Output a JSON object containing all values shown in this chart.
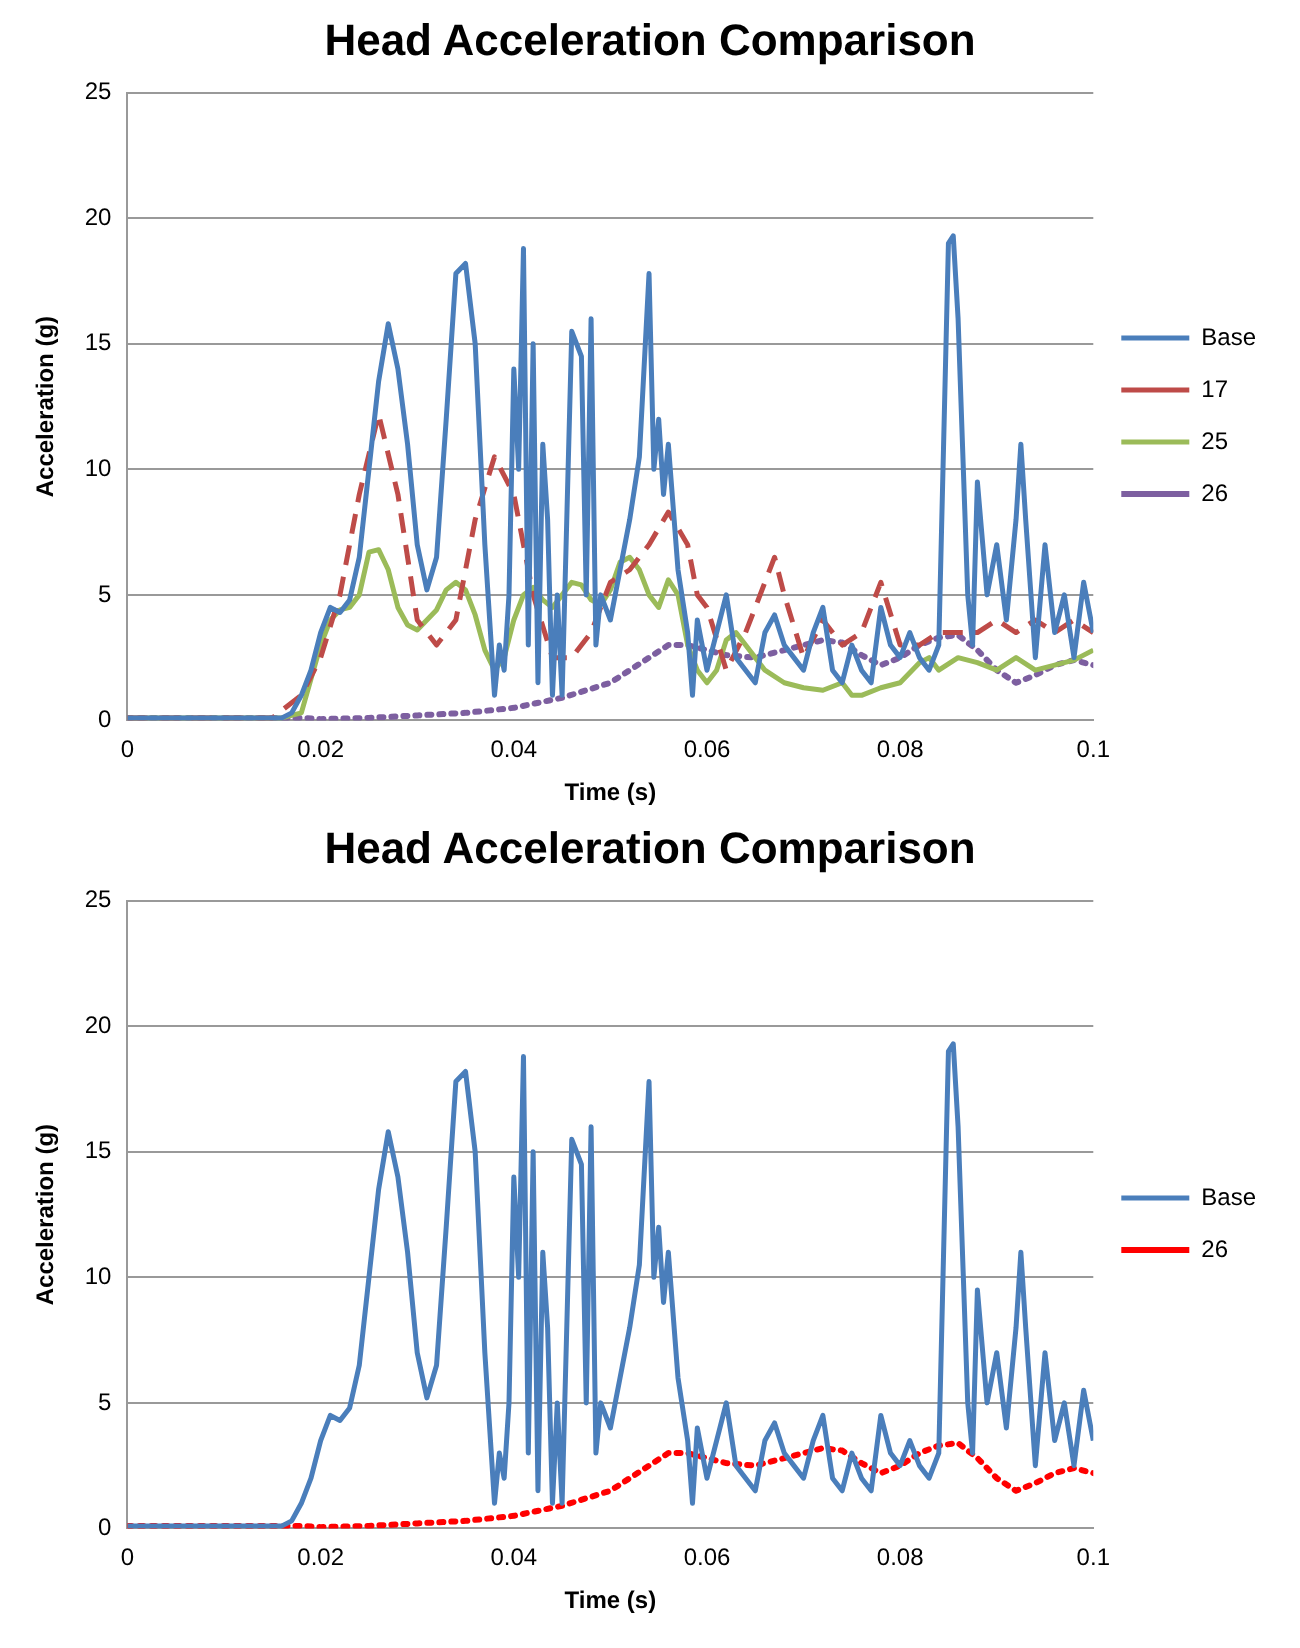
{
  "chart_data": [
    {
      "type": "line",
      "title": "Head Acceleration Comparison",
      "xlabel": "Time (s)",
      "ylabel": "Acceleration (g)",
      "xlim": [
        0,
        0.1
      ],
      "xticks": [
        0,
        0.02,
        0.04,
        0.06,
        0.08,
        0.1
      ],
      "ylim": [
        0,
        25
      ],
      "yticks": [
        0,
        5,
        10,
        15,
        20,
        25
      ],
      "grid": "y",
      "legend": "right",
      "marker": "none",
      "series": [
        {
          "name": "Base",
          "color": "#4a7ebb",
          "line_style": "solid",
          "x": [
            0,
            0.005,
            0.01,
            0.016,
            0.017,
            0.018,
            0.019,
            0.02,
            0.021,
            0.022,
            0.023,
            0.024,
            0.025,
            0.026,
            0.027,
            0.028,
            0.029,
            0.03,
            0.031,
            0.032,
            0.033,
            0.034,
            0.035,
            0.036,
            0.037,
            0.038,
            0.0385,
            0.039,
            0.0395,
            0.04,
            0.0405,
            0.041,
            0.0415,
            0.042,
            0.0425,
            0.043,
            0.0435,
            0.044,
            0.0445,
            0.045,
            0.046,
            0.047,
            0.0475,
            0.048,
            0.0485,
            0.049,
            0.05,
            0.051,
            0.052,
            0.053,
            0.054,
            0.0545,
            0.055,
            0.0555,
            0.056,
            0.057,
            0.058,
            0.0585,
            0.059,
            0.06,
            0.061,
            0.062,
            0.063,
            0.064,
            0.065,
            0.066,
            0.067,
            0.068,
            0.069,
            0.07,
            0.071,
            0.072,
            0.073,
            0.074,
            0.075,
            0.076,
            0.077,
            0.078,
            0.079,
            0.08,
            0.081,
            0.082,
            0.083,
            0.084,
            0.085,
            0.0855,
            0.086,
            0.087,
            0.0875,
            0.088,
            0.089,
            0.09,
            0.091,
            0.092,
            0.0925,
            0.093,
            0.094,
            0.095,
            0.096,
            0.097,
            0.098,
            0.099,
            0.1
          ],
          "values": [
            0.1,
            0.1,
            0.1,
            0.1,
            0.3,
            1,
            2,
            3.5,
            4.5,
            4.3,
            4.8,
            6.5,
            10,
            13.5,
            15.8,
            14,
            11,
            7,
            5.2,
            6.5,
            12,
            17.8,
            18.2,
            15,
            7,
            1,
            3,
            2,
            5,
            14,
            10,
            18.8,
            3,
            15,
            1.5,
            11,
            8,
            1,
            5,
            1,
            15.5,
            14.5,
            5,
            16,
            3,
            5,
            4,
            6,
            8,
            10.5,
            17.8,
            10,
            12,
            9,
            11,
            6,
            3.5,
            1,
            4,
            2,
            3.5,
            5,
            2.5,
            2,
            1.5,
            3.5,
            4.2,
            3,
            2.5,
            2,
            3.5,
            4.5,
            2,
            1.5,
            3,
            2,
            1.5,
            4.5,
            3,
            2.5,
            3.5,
            2.5,
            2,
            3,
            19,
            19.3,
            16,
            5,
            3,
            9.5,
            5,
            7,
            4,
            8,
            11,
            8,
            2.5,
            7,
            3.5,
            5,
            2.5,
            5.5,
            3.5
          ]
        },
        {
          "name": "17",
          "color": "#be4b48",
          "line_style": "dashed",
          "x": [
            0,
            0.015,
            0.016,
            0.018,
            0.02,
            0.022,
            0.024,
            0.026,
            0.028,
            0.03,
            0.032,
            0.034,
            0.036,
            0.038,
            0.04,
            0.042,
            0.044,
            0.046,
            0.048,
            0.05,
            0.052,
            0.054,
            0.056,
            0.058,
            0.059,
            0.06,
            0.062,
            0.064,
            0.066,
            0.067,
            0.068,
            0.07,
            0.072,
            0.074,
            0.076,
            0.078,
            0.08,
            0.082,
            0.084,
            0.086,
            0.088,
            0.09,
            0.092,
            0.094,
            0.096,
            0.098,
            0.1
          ],
          "values": [
            0.1,
            0.1,
            0.4,
            1,
            2.5,
            5,
            9,
            12.2,
            9,
            4,
            3,
            4,
            8,
            10.5,
            9,
            5,
            2.5,
            2.5,
            3.5,
            5.5,
            6,
            7,
            8.3,
            7,
            5,
            4.5,
            2,
            3.5,
            5.5,
            6.5,
            5,
            2.5,
            4,
            3,
            3.5,
            5.5,
            3,
            3,
            3.5,
            3.5,
            3.5,
            4,
            3.5,
            4,
            3.5,
            4,
            3.5
          ]
        },
        {
          "name": "25",
          "color": "#9bbb59",
          "line_style": "solid",
          "x": [
            0,
            0.016,
            0.018,
            0.02,
            0.021,
            0.022,
            0.023,
            0.024,
            0.025,
            0.026,
            0.027,
            0.028,
            0.029,
            0.03,
            0.032,
            0.033,
            0.034,
            0.035,
            0.036,
            0.037,
            0.038,
            0.039,
            0.04,
            0.041,
            0.042,
            0.043,
            0.044,
            0.045,
            0.046,
            0.047,
            0.048,
            0.049,
            0.05,
            0.051,
            0.052,
            0.053,
            0.054,
            0.055,
            0.056,
            0.057,
            0.058,
            0.059,
            0.06,
            0.061,
            0.062,
            0.063,
            0.064,
            0.065,
            0.066,
            0.068,
            0.07,
            0.072,
            0.074,
            0.075,
            0.076,
            0.078,
            0.08,
            0.082,
            0.083,
            0.084,
            0.086,
            0.088,
            0.09,
            0.092,
            0.094,
            0.096,
            0.098,
            0.1
          ],
          "values": [
            0.1,
            0.1,
            0.3,
            3,
            4,
            4.4,
            4.5,
            5,
            6.7,
            6.8,
            6,
            4.5,
            3.8,
            3.6,
            4.4,
            5.2,
            5.5,
            5.2,
            4.2,
            2.8,
            2,
            2.5,
            4,
            5,
            5.3,
            4.8,
            4.5,
            5,
            5.5,
            5.4,
            4.8,
            4.6,
            5.2,
            6.3,
            6.5,
            6,
            5,
            4.5,
            5.6,
            5,
            3,
            2,
            1.5,
            2,
            3.2,
            3.5,
            3,
            2.5,
            2,
            1.5,
            1.3,
            1.2,
            1.5,
            1,
            1,
            1.3,
            1.5,
            2.3,
            2.5,
            2,
            2.5,
            2.3,
            2,
            2.5,
            2,
            2.2,
            2.4,
            2.8
          ]
        },
        {
          "name": "26",
          "color": "#7d5fa0",
          "line_style": "dotted",
          "x": [
            0,
            0.018,
            0.02,
            0.025,
            0.03,
            0.035,
            0.04,
            0.045,
            0.05,
            0.054,
            0.056,
            0.058,
            0.06,
            0.062,
            0.065,
            0.068,
            0.07,
            0.072,
            0.074,
            0.076,
            0.078,
            0.08,
            0.082,
            0.084,
            0.086,
            0.088,
            0.09,
            0.092,
            0.094,
            0.096,
            0.098,
            0.1
          ],
          "values": [
            0.1,
            0.1,
            0.05,
            0.1,
            0.2,
            0.3,
            0.5,
            0.9,
            1.5,
            2.5,
            3,
            3,
            2.8,
            2.6,
            2.5,
            2.8,
            3,
            3.2,
            3.1,
            2.6,
            2.2,
            2.5,
            3,
            3.3,
            3.4,
            2.8,
            2,
            1.5,
            1.8,
            2.2,
            2.4,
            2.2
          ]
        }
      ]
    },
    {
      "type": "line",
      "title": "Head Acceleration Comparison",
      "xlabel": "Time (s)",
      "ylabel": "Acceleration (g)",
      "xlim": [
        0,
        0.1
      ],
      "xticks": [
        0,
        0.02,
        0.04,
        0.06,
        0.08,
        0.1
      ],
      "ylim": [
        0,
        25
      ],
      "yticks": [
        0,
        5,
        10,
        15,
        20,
        25
      ],
      "grid": "y",
      "legend": "right",
      "marker": "none",
      "series": [
        {
          "name": "Base",
          "color": "#4a7ebb",
          "line_style": "solid",
          "x": [
            0,
            0.005,
            0.01,
            0.016,
            0.017,
            0.018,
            0.019,
            0.02,
            0.021,
            0.022,
            0.023,
            0.024,
            0.025,
            0.026,
            0.027,
            0.028,
            0.029,
            0.03,
            0.031,
            0.032,
            0.033,
            0.034,
            0.035,
            0.036,
            0.037,
            0.038,
            0.0385,
            0.039,
            0.0395,
            0.04,
            0.0405,
            0.041,
            0.0415,
            0.042,
            0.0425,
            0.043,
            0.0435,
            0.044,
            0.0445,
            0.045,
            0.046,
            0.047,
            0.0475,
            0.048,
            0.0485,
            0.049,
            0.05,
            0.051,
            0.052,
            0.053,
            0.054,
            0.0545,
            0.055,
            0.0555,
            0.056,
            0.057,
            0.058,
            0.0585,
            0.059,
            0.06,
            0.061,
            0.062,
            0.063,
            0.064,
            0.065,
            0.066,
            0.067,
            0.068,
            0.069,
            0.07,
            0.071,
            0.072,
            0.073,
            0.074,
            0.075,
            0.076,
            0.077,
            0.078,
            0.079,
            0.08,
            0.081,
            0.082,
            0.083,
            0.084,
            0.085,
            0.0855,
            0.086,
            0.087,
            0.0875,
            0.088,
            0.089,
            0.09,
            0.091,
            0.092,
            0.0925,
            0.093,
            0.094,
            0.095,
            0.096,
            0.097,
            0.098,
            0.099,
            0.1
          ],
          "values": [
            0.1,
            0.1,
            0.1,
            0.1,
            0.3,
            1,
            2,
            3.5,
            4.5,
            4.3,
            4.8,
            6.5,
            10,
            13.5,
            15.8,
            14,
            11,
            7,
            5.2,
            6.5,
            12,
            17.8,
            18.2,
            15,
            7,
            1,
            3,
            2,
            5,
            14,
            10,
            18.8,
            3,
            15,
            1.5,
            11,
            8,
            1,
            5,
            1,
            15.5,
            14.5,
            5,
            16,
            3,
            5,
            4,
            6,
            8,
            10.5,
            17.8,
            10,
            12,
            9,
            11,
            6,
            3.5,
            1,
            4,
            2,
            3.5,
            5,
            2.5,
            2,
            1.5,
            3.5,
            4.2,
            3,
            2.5,
            2,
            3.5,
            4.5,
            2,
            1.5,
            3,
            2,
            1.5,
            4.5,
            3,
            2.5,
            3.5,
            2.5,
            2,
            3,
            19,
            19.3,
            16,
            5,
            3,
            9.5,
            5,
            7,
            4,
            8,
            11,
            8,
            2.5,
            7,
            3.5,
            5,
            2.5,
            5.5,
            3.5
          ]
        },
        {
          "name": "26",
          "color": "#ff0000",
          "line_style": "dotted",
          "x": [
            0,
            0.018,
            0.02,
            0.025,
            0.03,
            0.035,
            0.04,
            0.045,
            0.05,
            0.054,
            0.056,
            0.058,
            0.06,
            0.062,
            0.065,
            0.068,
            0.07,
            0.072,
            0.074,
            0.076,
            0.078,
            0.08,
            0.082,
            0.084,
            0.086,
            0.088,
            0.09,
            0.092,
            0.094,
            0.096,
            0.098,
            0.1
          ],
          "values": [
            0.1,
            0.1,
            0.05,
            0.1,
            0.2,
            0.3,
            0.5,
            0.9,
            1.5,
            2.5,
            3,
            3,
            2.8,
            2.6,
            2.5,
            2.8,
            3,
            3.2,
            3.1,
            2.6,
            2.2,
            2.5,
            3,
            3.3,
            3.4,
            2.8,
            2,
            1.5,
            1.8,
            2.2,
            2.4,
            2.2
          ]
        }
      ]
    }
  ]
}
